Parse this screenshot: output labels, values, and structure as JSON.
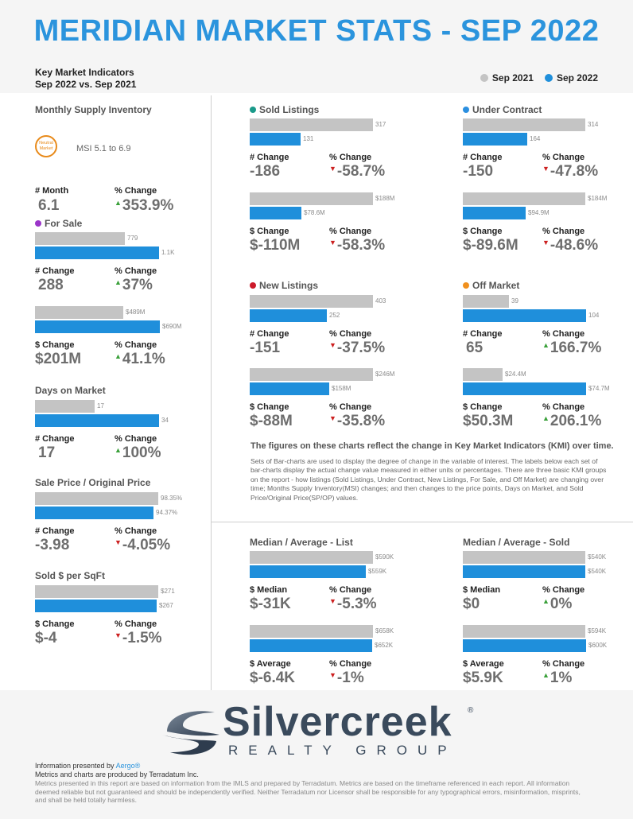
{
  "title": "MERIDIAN MARKET STATS - SEP 2022",
  "kmi": {
    "line1": "Key Market Indicators",
    "line2": "Sep 2022 vs. Sep 2021"
  },
  "legend": [
    {
      "label": "Sep 2021",
      "color": "#c4c4c4"
    },
    {
      "label": "Sep 2022",
      "color": "#1f8fdb"
    }
  ],
  "supply": {
    "title": "Monthly Supply Inventory",
    "badge": "Neutral Market",
    "msi": "MSI 5.1 to 6.9"
  },
  "month": {
    "lab1": "# Month",
    "val1": "6.1",
    "lab2": "% Change",
    "val2": "353.9%",
    "dir": "up"
  },
  "for_sale": {
    "title": "For Sale",
    "dot": "#9b35c9",
    "g1": {
      "v2021": "779",
      "v2022": "1.1K",
      "lab1": "# Change",
      "val1": "288",
      "lab2": "% Change",
      "val2": "37%",
      "dir": "up"
    },
    "g2": {
      "v2021": "$489M",
      "v2022": "$690M",
      "lab1": "$ Change",
      "val1": "$201M",
      "lab2": "% Change",
      "val2": "41.1%",
      "dir": "up"
    }
  },
  "dom": {
    "title": "Days on Market",
    "v2021": "17",
    "v2022": "34",
    "lab1": "# Change",
    "val1": "17",
    "lab2": "% Change",
    "val2": "100%",
    "dir": "up"
  },
  "sp_op": {
    "title": "Sale Price / Original Price",
    "v2021": "98.35%",
    "v2022": "94.37%",
    "lab1": "# Change",
    "val1": "-3.98",
    "lab2": "% Change",
    "val2": "-4.05%",
    "dir": "down"
  },
  "sqft": {
    "title": "Sold $ per SqFt",
    "v2021": "$271",
    "v2022": "$267",
    "lab1": "$ Change",
    "val1": "$-4",
    "lab2": "% Change",
    "val2": "-1.5%",
    "dir": "down"
  },
  "sold": {
    "title": "Sold Listings",
    "dot": "#1a9a8a",
    "g1": {
      "v2021": "317",
      "v2022": "131",
      "lab1": "# Change",
      "val1": "-186",
      "lab2": "% Change",
      "val2": "-58.7%",
      "dir": "down"
    },
    "g2": {
      "v2021": "$188M",
      "v2022": "$78.6M",
      "lab1": "$ Change",
      "val1": "$-110M",
      "lab2": "% Change",
      "val2": "-58.3%",
      "dir": "down"
    }
  },
  "under": {
    "title": "Under Contract",
    "dot": "#2b8fe0",
    "g1": {
      "v2021": "314",
      "v2022": "164",
      "lab1": "# Change",
      "val1": "-150",
      "lab2": "% Change",
      "val2": "-47.8%",
      "dir": "down"
    },
    "g2": {
      "v2021": "$184M",
      "v2022": "$94.9M",
      "lab1": "$ Change",
      "val1": "$-89.6M",
      "lab2": "% Change",
      "val2": "-48.6%",
      "dir": "down"
    }
  },
  "new": {
    "title": "New Listings",
    "dot": "#cc1a2a",
    "g1": {
      "v2021": "403",
      "v2022": "252",
      "lab1": "# Change",
      "val1": "-151",
      "lab2": "% Change",
      "val2": "-37.5%",
      "dir": "down"
    },
    "g2": {
      "v2021": "$246M",
      "v2022": "$158M",
      "lab1": "$ Change",
      "val1": "$-88M",
      "lab2": "% Change",
      "val2": "-35.8%",
      "dir": "down"
    }
  },
  "off": {
    "title": "Off Market",
    "dot": "#f0901e",
    "g1": {
      "v2021": "39",
      "v2022": "104",
      "lab1": "# Change",
      "val1": "65",
      "lab2": "% Change",
      "val2": "166.7%",
      "dir": "up"
    },
    "g2": {
      "v2021": "$24.4M",
      "v2022": "$74.7M",
      "lab1": "$ Change",
      "val1": "$50.3M",
      "lab2": "% Change",
      "val2": "206.1%",
      "dir": "up"
    }
  },
  "notes": {
    "heading": "The figures on these charts reflect the change in Key Market Indicators (KMI) over time.",
    "body": "Sets of Bar-charts are used to display the degree of change in the variable of interest. The labels below each set of bar-charts display the actual change value measured in either units or percentages. There are three basic KMI groups on the report - how listings (Sold Listings, Under Contract, New Listings, For Sale, and Off Market) are changing over time; Months Supply Inventory(MSI) changes; and then changes to the price points, Days on Market, and Sold Price/Original Price(SP/OP) values."
  },
  "list": {
    "title": "Median / Average - List",
    "g1": {
      "v2021": "$590K",
      "v2022": "$559K",
      "lab1": "$ Median",
      "val1": "$-31K",
      "lab2": "% Change",
      "val2": "-5.3%",
      "dir": "down"
    },
    "g2": {
      "v2021": "$658K",
      "v2022": "$652K",
      "lab1": "$ Average",
      "val1": "$-6.4K",
      "lab2": "% Change",
      "val2": "-1%",
      "dir": "down"
    }
  },
  "soldp": {
    "title": "Median / Average - Sold",
    "g1": {
      "v2021": "$540K",
      "v2022": "$540K",
      "lab1": "$ Median",
      "val1": "$0",
      "lab2": "% Change",
      "val2": "0%",
      "dir": "up"
    },
    "g2": {
      "v2021": "$594K",
      "v2022": "$600K",
      "lab1": "$ Average",
      "val1": "$5.9K",
      "lab2": "% Change",
      "val2": "1%",
      "dir": "up"
    }
  },
  "logo": {
    "word": "Silvercreek",
    "sub": "REALTY GROUP",
    "reg": "®"
  },
  "footer": {
    "presented_prefix": "Information presented by ",
    "presented_by": "Aergo®",
    "produced": "Metrics and charts are produced by Terradatum Inc.",
    "disclaimer": "Metrics presented in this report are based on information from the IMLS and prepared by Terradatum. Metrics are based on the timeframe referenced in each report. All information deemed reliable but not guaranteed and should be independently verified. Neither Terradatum nor Licensor shall be responsible for any typographical errors, misinformation, misprints, and shall be held totally harmless."
  }
}
